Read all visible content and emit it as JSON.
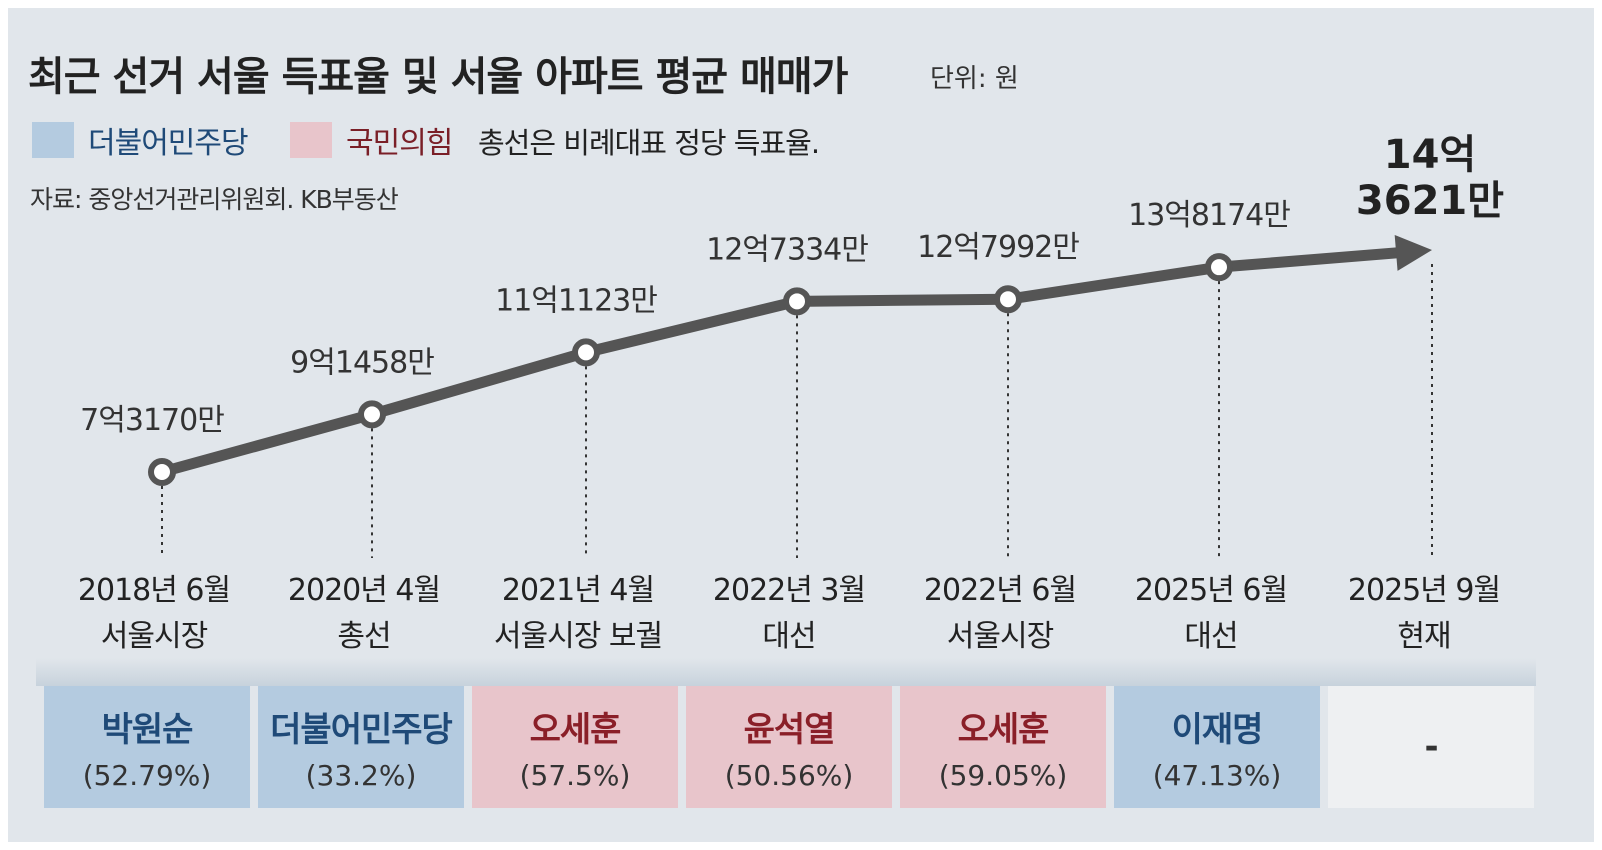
{
  "title": "최근 선거 서울 득표율 및 서울 아파트 평균 매매가",
  "unit": "단위: 원",
  "legend": {
    "dem": "더불어민주당",
    "ppp": "국민의힘",
    "note": "총선은 비례대표 정당 득표율."
  },
  "source": "자료: 중앙선거관리위원회. KB부동산",
  "colors": {
    "dem": "#b4cbe0",
    "ppp": "#e8c5cb",
    "line": "#555555",
    "background": "#e1e6eb"
  },
  "chart_data": {
    "type": "line",
    "unit": "원",
    "categories": [
      "2018년 6월 서울시장",
      "2020년 4월 총선",
      "2021년 4월 서울시장 보궐",
      "2022년 3월 대선",
      "2022년 6월 서울시장",
      "2025년 6월 대선",
      "2025년 9월 현재"
    ],
    "x_labels": [
      [
        "2018년 6월",
        "서울시장"
      ],
      [
        "2020년 4월",
        "총선"
      ],
      [
        "2021년 4월",
        "서울시장 보궐"
      ],
      [
        "2022년 3월",
        "대선"
      ],
      [
        "2022년 6월",
        "서울시장"
      ],
      [
        "2025년 6월",
        "대선"
      ],
      [
        "2025년 9월",
        "현재"
      ]
    ],
    "values": [
      731700000,
      914580000,
      1111230000,
      1273340000,
      1279920000,
      1381740000,
      1436210000
    ],
    "value_labels": [
      "7억3170만",
      "9억1458만",
      "11억1123만",
      "12억7334만",
      "12억7992만",
      "13억8174만",
      "14억 3621만"
    ],
    "last_label_lines": [
      "14억",
      "3621만"
    ]
  },
  "results": [
    {
      "name": "박원순",
      "pct": "(52.79%)",
      "party": "dem"
    },
    {
      "name": "더불어민주당",
      "pct": "(33.2%)",
      "party": "dem"
    },
    {
      "name": "오세훈",
      "pct": "(57.5%)",
      "party": "ppp"
    },
    {
      "name": "윤석열",
      "pct": "(50.56%)",
      "party": "ppp"
    },
    {
      "name": "오세훈",
      "pct": "(59.05%)",
      "party": "ppp"
    },
    {
      "name": "이재명",
      "pct": "(47.13%)",
      "party": "dem"
    },
    {
      "name": "-",
      "pct": "",
      "party": "none"
    }
  ]
}
